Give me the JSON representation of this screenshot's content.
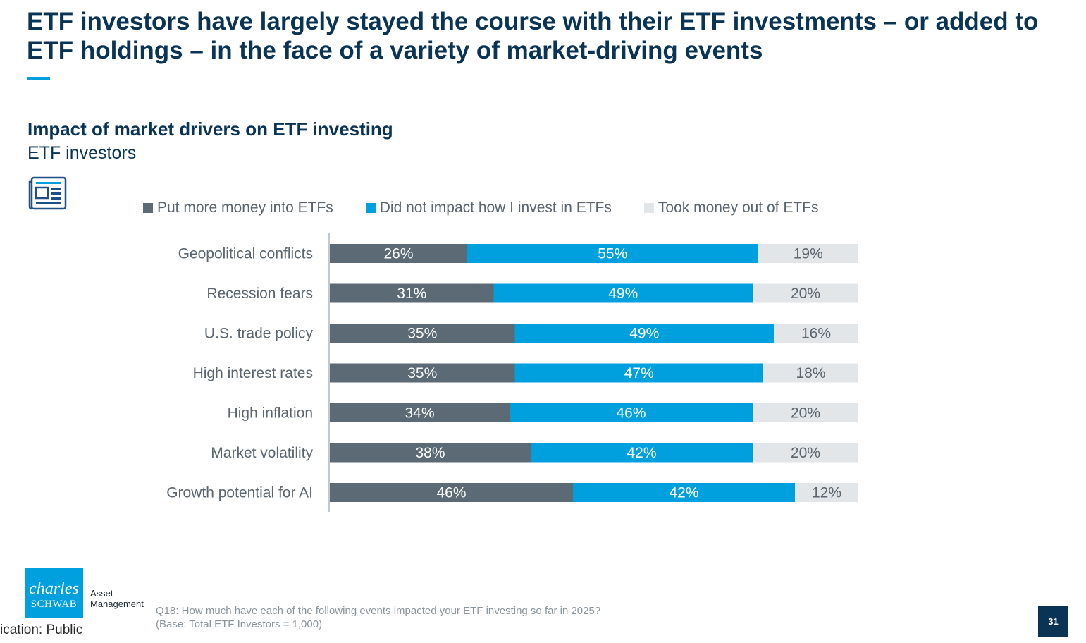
{
  "header": {
    "title": "ETF investors have largely stayed the course with their ETF investments – or added to ETF holdings – in the face of a variety of market-driving events"
  },
  "chart_data": {
    "type": "bar",
    "orientation": "horizontal",
    "stacked": true,
    "title": "Impact of market drivers on ETF investing",
    "subtitle": "ETF investors",
    "categories": [
      "Geopolitical conflicts",
      "Recession fears",
      "U.S. trade policy",
      "High interest rates",
      "High inflation",
      "Market volatility",
      "Growth potential for AI"
    ],
    "series": [
      {
        "name": "Put more money into ETFs",
        "color": "#5c6a75",
        "label_color": "#ffffff",
        "values": [
          26,
          31,
          35,
          35,
          34,
          38,
          46
        ]
      },
      {
        "name": "Did not impact how I invest in ETFs",
        "color": "#00a0df",
        "label_color": "#ffffff",
        "values": [
          55,
          49,
          49,
          47,
          46,
          42,
          42
        ]
      },
      {
        "name": "Took money out of ETFs",
        "color": "#e3e6e8",
        "label_color": "#5a6570",
        "values": [
          19,
          20,
          16,
          18,
          20,
          20,
          12
        ]
      }
    ],
    "value_suffix": "%",
    "legend_position": "top",
    "grid": false
  },
  "footer": {
    "logo_charles": "charles",
    "logo_schwab": "SCHWAB",
    "logo_sub_1": "Asset",
    "logo_sub_2": "Management",
    "footnote_1": "Q18: How much have each of the following events impacted your ETF investing so far in 2025?",
    "footnote_2": "(Base: Total ETF Investors = 1,000)",
    "classification": "ication: Public",
    "page_number": "31"
  },
  "icons": {
    "header_icon": "newspaper-icon"
  }
}
